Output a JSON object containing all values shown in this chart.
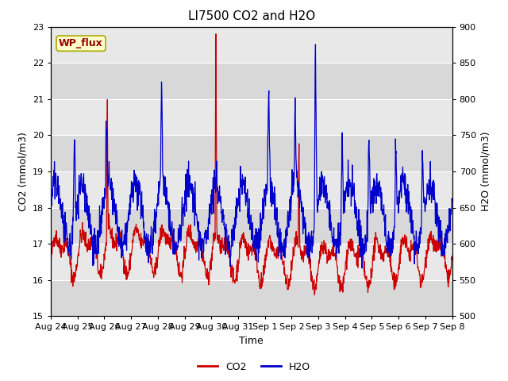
{
  "title": "LI7500 CO2 and H2O",
  "xlabel": "Time",
  "ylabel_left": "CO2 (mmol/m3)",
  "ylabel_right": "H2O (mmol/m3)",
  "co2_ylim": [
    15.0,
    23.0
  ],
  "h2o_ylim": [
    500,
    900
  ],
  "co2_yticks": [
    15.0,
    16.0,
    17.0,
    18.0,
    19.0,
    20.0,
    21.0,
    22.0,
    23.0
  ],
  "h2o_yticks": [
    500,
    550,
    600,
    650,
    700,
    750,
    800,
    850,
    900
  ],
  "xtick_labels": [
    "Aug 24",
    "Aug 25",
    "Aug 26",
    "Aug 27",
    "Aug 28",
    "Aug 29",
    "Aug 30",
    "Aug 31",
    "Sep 1",
    "Sep 2",
    "Sep 3",
    "Sep 4",
    "Sep 5",
    "Sep 6",
    "Sep 7",
    "Sep 8"
  ],
  "co2_color": "#cc0000",
  "h2o_color": "#0000cc",
  "annotation_text": "WP_flux",
  "band_colors": [
    "#d8d8d8",
    "#e8e8e8"
  ],
  "grid_color": "white",
  "legend_co2": "CO2",
  "legend_h2o": "H2O",
  "title_fontsize": 11,
  "axis_fontsize": 9,
  "tick_fontsize": 8
}
